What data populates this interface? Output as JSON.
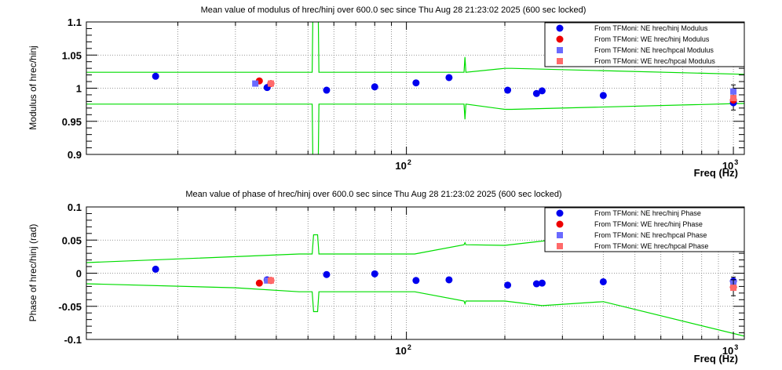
{
  "chart_data": [
    {
      "type": "scatter",
      "title": "Mean value of modulus of hrec/hinj over 600.0 sec since Thu Aug 28 21:23:02 2025 (600 sec locked)",
      "xlabel": "Freq (Hz)",
      "ylabel": "Modulus of hrec/hinj",
      "x_scale": "log",
      "xlim": [
        10.5,
        1080
      ],
      "ylim": [
        0.9,
        1.1
      ],
      "y_ticks": [
        "0.9",
        "0.95",
        "1",
        "1.05",
        "1.1"
      ],
      "x_ticks": [
        {
          "base": "10",
          "exp": "2"
        },
        {
          "base": "10",
          "exp": "3"
        }
      ],
      "grid": true,
      "legend_position": "top-right",
      "series": [
        {
          "name": "From TFMoni: NE hrec/hinj Modulus",
          "color": "#0000ee",
          "marker": "circle",
          "x": [
            17.1,
            37.5,
            57,
            80,
            107,
            135,
            204,
            250,
            260,
            400,
            1000
          ],
          "y": [
            1.018,
            1.001,
            0.997,
            1.002,
            1.008,
            1.016,
            0.997,
            0.992,
            0.996,
            0.989,
            0.978
          ],
          "err": [
            0,
            0,
            0,
            0,
            0,
            0,
            0,
            0,
            0,
            0,
            0.011
          ]
        },
        {
          "name": "From TFMoni: WE hrec/hinj Modulus",
          "color": "#ee0000",
          "marker": "circle",
          "x": [
            35.5,
            38.5,
            1000
          ],
          "y": [
            1.011,
            1.007,
            0.982
          ],
          "err": [
            0,
            0,
            0
          ]
        },
        {
          "name": "From TFMoni: NE hrec/hpcal Modulus",
          "color": "#6a6aff",
          "marker": "square",
          "x": [
            34.5,
            1000
          ],
          "y": [
            1.007,
            0.995
          ],
          "err": [
            0,
            0.01
          ]
        },
        {
          "name": "From TFMoni: WE hrec/hpcal Modulus",
          "color": "#ff6a6a",
          "marker": "square",
          "x": [
            38.5,
            1000
          ],
          "y": [
            1.007,
            0.985
          ],
          "err": [
            0,
            0
          ]
        }
      ],
      "envelope": {
        "color": "#00dd00",
        "upper": {
          "x": [
            10.5,
            30,
            51.5,
            52,
            53.5,
            54,
            150,
            151,
            152,
            200,
            210,
            1080
          ],
          "y": [
            1.024,
            1.024,
            1.024,
            1.2,
            1.2,
            1.024,
            1.024,
            1.047,
            1.024,
            1.03,
            1.03,
            1.021
          ]
        },
        "lower": {
          "x": [
            10.5,
            30,
            51.5,
            52,
            53.5,
            54,
            150,
            151,
            152,
            200,
            210,
            1080
          ],
          "y": [
            0.976,
            0.976,
            0.976,
            0.8,
            0.8,
            0.976,
            0.976,
            0.953,
            0.976,
            0.968,
            0.968,
            0.977
          ]
        }
      }
    },
    {
      "type": "scatter",
      "title": "Mean value of phase of hrec/hinj over 600.0 sec since Thu Aug 28 21:23:02 2025 (600 sec locked)",
      "xlabel": "Freq (Hz)",
      "ylabel": "Phase of hrec/hinj (rad)",
      "x_scale": "log",
      "xlim": [
        10.5,
        1080
      ],
      "ylim": [
        -0.1,
        0.1
      ],
      "y_ticks": [
        "-0.1",
        "-0.05",
        "0",
        "0.05",
        "0.1"
      ],
      "x_ticks": [
        {
          "base": "10",
          "exp": "2"
        },
        {
          "base": "10",
          "exp": "3"
        }
      ],
      "grid": true,
      "legend_position": "top-right",
      "series": [
        {
          "name": "From TFMoni: NE hrec/hinj Phase",
          "color": "#0000ee",
          "marker": "circle",
          "x": [
            17.1,
            37.5,
            57,
            80,
            107,
            135,
            204,
            250,
            260,
            400,
            1000
          ],
          "y": [
            0.006,
            -0.01,
            -0.002,
            -0.001,
            -0.011,
            -0.01,
            -0.018,
            -0.016,
            -0.015,
            -0.013,
            -0.012
          ],
          "err": [
            0,
            0,
            0,
            0,
            0,
            0,
            0,
            0,
            0,
            0,
            0.006
          ]
        },
        {
          "name": "From TFMoni: WE hrec/hinj Phase",
          "color": "#ee0000",
          "marker": "circle",
          "x": [
            35.5,
            38.5,
            1000
          ],
          "y": [
            -0.015,
            -0.011,
            -0.021
          ],
          "err": [
            0,
            0,
            0
          ]
        },
        {
          "name": "From TFMoni: NE hrec/hpcal Phase",
          "color": "#6a6aff",
          "marker": "square",
          "x": [
            37.5,
            1000
          ],
          "y": [
            -0.011,
            -0.015
          ],
          "err": [
            0,
            0
          ]
        },
        {
          "name": "From TFMoni: WE hrec/hpcal Phase",
          "color": "#ff6a6a",
          "marker": "square",
          "x": [
            38.5,
            1000
          ],
          "y": [
            -0.011,
            -0.022
          ],
          "err": [
            0,
            0.012
          ]
        }
      ],
      "envelope": {
        "color": "#00dd00",
        "upper": {
          "x": [
            10.5,
            30,
            47,
            51.5,
            52,
            53.5,
            54,
            106,
            150,
            151,
            152,
            200,
            300,
            1080
          ],
          "y": [
            0.016,
            0.025,
            0.029,
            0.029,
            0.058,
            0.058,
            0.029,
            0.029,
            0.043,
            0.046,
            0.043,
            0.042,
            0.052,
            0.052
          ]
        },
        "lower": {
          "x": [
            10.5,
            30,
            47,
            51.5,
            52,
            53.5,
            54,
            106,
            150,
            151,
            152,
            200,
            260,
            400,
            1080
          ],
          "y": [
            -0.016,
            -0.022,
            -0.028,
            -0.028,
            -0.058,
            -0.058,
            -0.028,
            -0.028,
            -0.042,
            -0.046,
            -0.042,
            -0.042,
            -0.049,
            -0.043,
            -0.095
          ]
        }
      }
    }
  ]
}
